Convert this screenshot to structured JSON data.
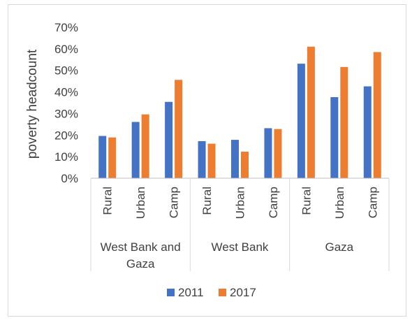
{
  "chart_data": {
    "type": "bar",
    "ylabel": "poverty headcount",
    "ylim": [
      0,
      0.7
    ],
    "y_ticks": [
      "0%",
      "10%",
      "20%",
      "30%",
      "40%",
      "50%",
      "60%",
      "70%"
    ],
    "groups": [
      {
        "label": "West Bank and Gaza",
        "categories": [
          "Rural",
          "Urban",
          "Camp"
        ]
      },
      {
        "label": "West Bank",
        "categories": [
          "Rural",
          "Urban",
          "Camp"
        ]
      },
      {
        "label": "Gaza",
        "categories": [
          "Rural",
          "Urban",
          "Camp"
        ]
      }
    ],
    "series": [
      {
        "name": "2011",
        "color": "#4472c4",
        "values": [
          0.196,
          0.261,
          0.354,
          0.172,
          0.178,
          0.232,
          0.531,
          0.376,
          0.426
        ]
      },
      {
        "name": "2017",
        "color": "#ed7d31",
        "values": [
          0.189,
          0.296,
          0.456,
          0.16,
          0.123,
          0.228,
          0.61,
          0.516,
          0.585
        ]
      }
    ],
    "legend_position": "bottom",
    "grid": false
  }
}
